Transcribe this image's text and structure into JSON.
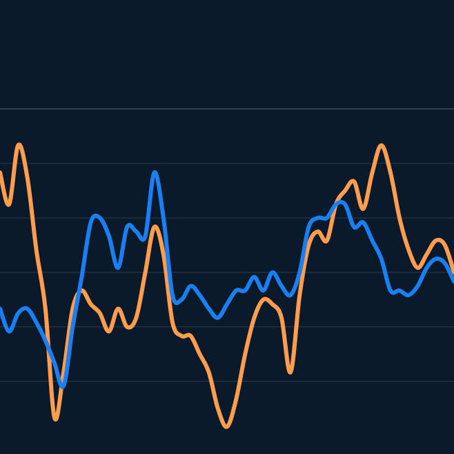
{
  "chart_data": {
    "type": "line",
    "title": "",
    "xlabel": "",
    "ylabel": "",
    "grid": true,
    "ylim": [
      0,
      100
    ],
    "gridlines_y": [
      76,
      64,
      52,
      40,
      28,
      16
    ],
    "x": [
      0,
      2,
      4,
      6,
      8,
      10,
      12,
      14,
      16,
      18,
      20,
      22,
      24,
      26,
      28,
      30,
      32,
      34,
      36,
      38,
      40,
      42,
      44,
      46,
      48,
      50,
      52,
      54,
      56,
      58,
      60,
      62,
      64,
      66,
      68,
      70,
      72,
      74,
      76,
      78,
      80,
      82,
      84,
      86,
      88,
      90,
      92,
      94,
      96,
      98,
      100
    ],
    "series": [
      {
        "color": "#ff9d4f",
        "values": [
          62,
          55,
          68,
          61,
          45,
          32,
          8,
          18,
          32,
          36,
          33,
          31,
          27,
          32,
          28,
          30,
          40,
          50,
          44,
          29,
          26,
          26,
          22,
          18,
          10,
          6,
          12,
          22,
          30,
          34,
          33,
          30,
          18,
          35,
          46,
          49,
          47,
          55,
          58,
          60,
          54,
          62,
          68,
          62,
          52,
          45,
          41,
          44,
          47,
          46,
          40
        ]
      },
      {
        "color": "#1a7ff0",
        "values": [
          32,
          27,
          31,
          32,
          29,
          25,
          20,
          15,
          28,
          39,
          51,
          52,
          48,
          41,
          50,
          49,
          48,
          62,
          52,
          35,
          34,
          37,
          35,
          32,
          30,
          33,
          36,
          36,
          39,
          36,
          40,
          37,
          35,
          40,
          50,
          52,
          52,
          55,
          55,
          50,
          51,
          47,
          43,
          36,
          36,
          35,
          37,
          41,
          43,
          42,
          38
        ]
      }
    ]
  }
}
